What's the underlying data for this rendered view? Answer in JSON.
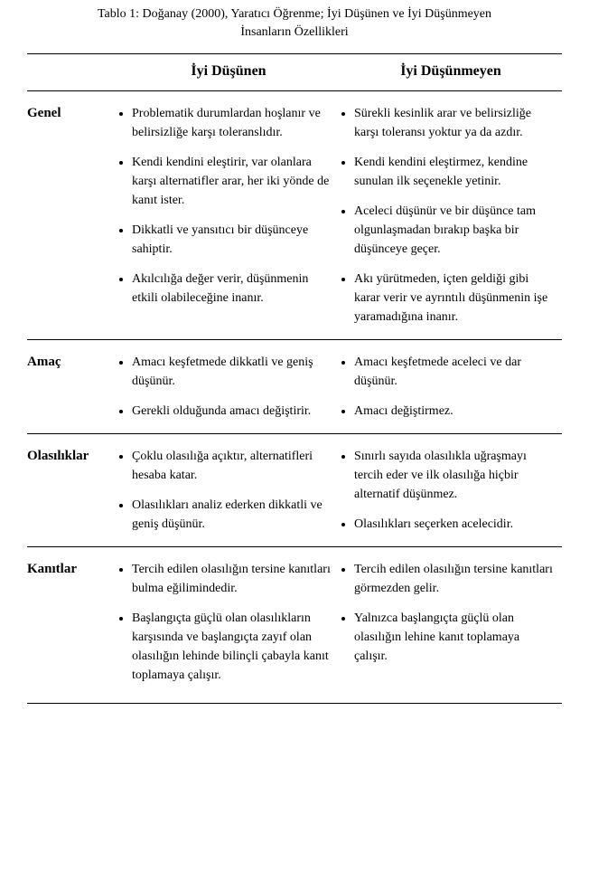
{
  "caption": {
    "line1_cut": "Tablo 1: Doğanay (2000), Yaratıcı Öğrenme; İyi Düşünen ve İyi Düşünmeyen",
    "line2": "İnsanların Özellikleri"
  },
  "headers": {
    "good": "İyi Düşünen",
    "bad": "İyi Düşünmeyen"
  },
  "sections": [
    {
      "label": "Genel",
      "good": [
        "Problematik durumlardan hoşlanır ve belirsizliğe karşı toleranslıdır.",
        "Kendi kendini eleştirir, var olanlara karşı alternatifler arar, her iki yönde de kanıt ister.",
        "Dikkatli ve yansıtıcı bir düşünceye sahiptir.",
        "Akılcılığa değer verir, düşünmenin etkili olabileceğine inanır."
      ],
      "bad": [
        "Sürekli kesinlik arar ve belirsizliğe karşı toleransı yoktur ya da azdır.",
        "Kendi kendini eleştirmez, kendine sunulan ilk seçenekle yetinir.",
        "Aceleci düşünür ve bir düşünce tam olgunlaşmadan bırakıp başka bir düşünceye geçer.",
        "Akı yürütmeden, içten geldiği gibi karar verir ve ayrıntılı düşünmenin işe yaramadığına inanır."
      ]
    },
    {
      "label": "Amaç",
      "good": [
        "Amacı keşfetmede dikkatli ve geniş düşünür.",
        "Gerekli olduğunda amacı değiştirir."
      ],
      "bad": [
        "Amacı keşfetmede aceleci ve dar düşünür.",
        "Amacı değiştirmez."
      ]
    },
    {
      "label": "Olasılıklar",
      "good": [
        "Çoklu olasılığa açıktır, alternatifleri hesaba katar.",
        "Olasılıkları analiz ederken dikkatli ve geniş düşünür."
      ],
      "bad": [
        "Sınırlı sayıda olasılıkla uğraşmayı tercih eder ve ilk olasılığa hiçbir alternatif düşünmez.",
        "Olasılıkları seçerken acelecidir."
      ]
    },
    {
      "label": "Kanıtlar",
      "good": [
        "Tercih edilen olasılığın tersine kanıtları bulma eğilimindedir.",
        "Başlangıçta güçlü olan olasılıkların karşısında ve başlangıçta zayıf olan olasılığın lehinde bilinçli çabayla kanıt toplamaya çalışır."
      ],
      "bad": [
        "Tercih edilen olasılığın tersine kanıtları görmezden gelir.",
        "Yalnızca başlangıçta güçlü olan olasılığın lehine kanıt toplamaya çalışır."
      ]
    }
  ]
}
